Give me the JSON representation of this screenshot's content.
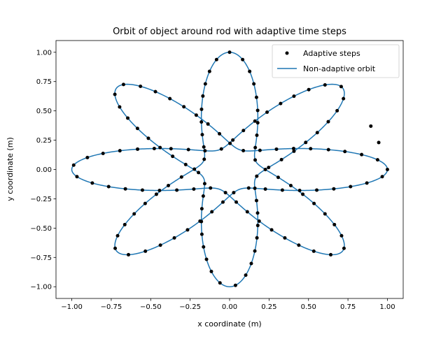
{
  "chart_data": {
    "type": "line",
    "title": "Orbit of object around rod with adaptive time steps",
    "xlabel": "x coordinate (m)",
    "ylabel": "y coordinate (m)",
    "xlim": [
      -1.1,
      1.1
    ],
    "ylim": [
      -1.1,
      1.1
    ],
    "xticks": [
      -1.0,
      -0.75,
      -0.5,
      -0.25,
      0.0,
      0.25,
      0.5,
      0.75,
      1.0
    ],
    "yticks": [
      -1.0,
      -0.75,
      -0.5,
      -0.25,
      0.0,
      0.25,
      0.5,
      0.75,
      1.0
    ],
    "xtick_labels": [
      "−1.00",
      "−0.75",
      "−0.50",
      "−0.25",
      "0.00",
      "0.25",
      "0.50",
      "0.75",
      "1.00"
    ],
    "ytick_labels": [
      "−1.00",
      "−0.75",
      "−0.50",
      "−0.25",
      "0.00",
      "0.25",
      "0.50",
      "0.75",
      "1.00"
    ],
    "grid": false,
    "legend_position": "top-right",
    "orbit": {
      "shape": "precessing ellipse (rosette)",
      "apoapsis": 1.0,
      "periapsis": 0.18,
      "lobes": 8,
      "start_point": [
        1.0,
        0.0
      ]
    },
    "series": [
      {
        "name": "Adaptive steps",
        "style": "markers",
        "color": "#000000",
        "extra_points": [
          [
            0.895,
            0.37
          ],
          [
            0.945,
            0.23
          ],
          [
            1.0,
            0.0
          ]
        ]
      },
      {
        "name": "Non-adaptive orbit",
        "style": "line",
        "color": "#1f77b4"
      }
    ]
  }
}
